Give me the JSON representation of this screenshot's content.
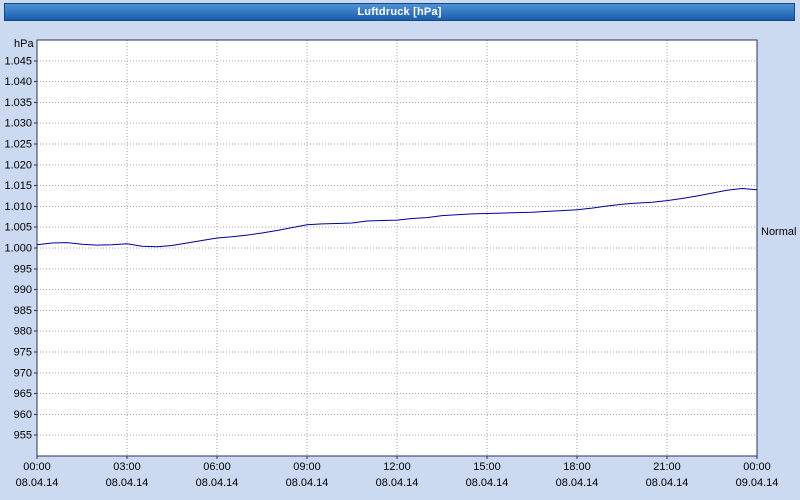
{
  "window": {
    "title": "Luftdruck [hPa]"
  },
  "colors": {
    "background": "#cbd9f1",
    "titlebar_top": "#4d92d8",
    "titlebar_bottom": "#1b5cab",
    "titlebar_border": "#12497f",
    "titlebar_text": "#ffffff",
    "plot_bg": "#ffffff",
    "plot_border": "#24365c",
    "grid": "#9aa2b2",
    "line": "#00009b",
    "text": "#000000"
  },
  "y_axis": {
    "unit_label": "hPa",
    "ticks": [
      {
        "label": "1.045",
        "value": 1045
      },
      {
        "label": "1.040",
        "value": 1040
      },
      {
        "label": "1.035",
        "value": 1035
      },
      {
        "label": "1.030",
        "value": 1030
      },
      {
        "label": "1.025",
        "value": 1025
      },
      {
        "label": "1.020",
        "value": 1020
      },
      {
        "label": "1.015",
        "value": 1015
      },
      {
        "label": "1.010",
        "value": 1010
      },
      {
        "label": "1.005",
        "value": 1005
      },
      {
        "label": "1.000",
        "value": 1000
      },
      {
        "label": "995",
        "value": 995
      },
      {
        "label": "990",
        "value": 990
      },
      {
        "label": "985",
        "value": 985
      },
      {
        "label": "980",
        "value": 980
      },
      {
        "label": "975",
        "value": 975
      },
      {
        "label": "970",
        "value": 970
      },
      {
        "label": "965",
        "value": 965
      },
      {
        "label": "960",
        "value": 960
      },
      {
        "label": "955",
        "value": 955
      }
    ]
  },
  "x_axis": {
    "ticks": [
      {
        "hour": 0,
        "time": "00:00",
        "date": "08.04.14"
      },
      {
        "hour": 3,
        "time": "03:00",
        "date": "08.04.14"
      },
      {
        "hour": 6,
        "time": "06:00",
        "date": "08.04.14"
      },
      {
        "hour": 9,
        "time": "09:00",
        "date": "08.04.14"
      },
      {
        "hour": 12,
        "time": "12:00",
        "date": "08.04.14"
      },
      {
        "hour": 15,
        "time": "15:00",
        "date": "08.04.14"
      },
      {
        "hour": 18,
        "time": "18:00",
        "date": "08.04.14"
      },
      {
        "hour": 21,
        "time": "21:00",
        "date": "08.04.14"
      },
      {
        "hour": 24,
        "time": "00:00",
        "date": "09.04.14"
      }
    ]
  },
  "right_label": "Normal",
  "chart_data": {
    "type": "line",
    "title": "Luftdruck [hPa]",
    "xlabel": "",
    "ylabel": "hPa",
    "ylim": [
      950,
      1050
    ],
    "xlim_hours": [
      0,
      24
    ],
    "grid": "dotted",
    "legend_position": "right",
    "series": [
      {
        "name": "Luftdruck",
        "x": [
          0,
          0.5,
          1,
          1.5,
          2,
          2.5,
          3,
          3.5,
          4,
          4.5,
          5,
          5.5,
          6,
          6.5,
          7,
          7.5,
          8,
          8.5,
          9,
          9.5,
          10,
          10.5,
          11,
          11.5,
          12,
          12.5,
          13,
          13.5,
          14,
          14.5,
          15,
          15.5,
          16,
          16.5,
          17,
          17.5,
          18,
          18.5,
          19,
          19.5,
          20,
          20.5,
          21,
          21.5,
          22,
          22.5,
          23,
          23.5,
          24
        ],
        "values": [
          1000.8,
          1001.2,
          1001.3,
          1000.9,
          1000.7,
          1000.8,
          1001.0,
          1000.4,
          1000.3,
          1000.6,
          1001.2,
          1001.8,
          1002.4,
          1002.7,
          1003.1,
          1003.6,
          1004.2,
          1004.9,
          1005.6,
          1005.8,
          1005.9,
          1006.0,
          1006.5,
          1006.6,
          1006.7,
          1007.1,
          1007.3,
          1007.8,
          1008.0,
          1008.2,
          1008.3,
          1008.4,
          1008.5,
          1008.6,
          1008.8,
          1009.0,
          1009.2,
          1009.6,
          1010.1,
          1010.5,
          1010.8,
          1011.0,
          1011.4,
          1011.9,
          1012.5,
          1013.2,
          1013.9,
          1014.3,
          1014.0
        ]
      }
    ]
  }
}
